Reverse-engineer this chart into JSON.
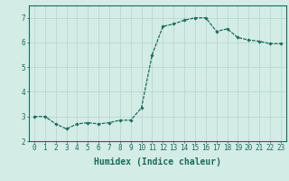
{
  "x": [
    0,
    1,
    2,
    3,
    4,
    5,
    6,
    7,
    8,
    9,
    10,
    11,
    12,
    13,
    14,
    15,
    16,
    17,
    18,
    19,
    20,
    21,
    22,
    23
  ],
  "y": [
    3.0,
    3.0,
    2.7,
    2.5,
    2.7,
    2.75,
    2.7,
    2.75,
    2.85,
    2.85,
    3.35,
    5.5,
    6.65,
    6.75,
    6.9,
    7.0,
    7.0,
    6.45,
    6.55,
    6.2,
    6.1,
    6.05,
    5.95,
    5.95
  ],
  "line_color": "#1a6b5a",
  "marker": "D",
  "marker_size": 1.8,
  "line_width": 0.9,
  "xlabel": "Humidex (Indice chaleur)",
  "xlim": [
    -0.5,
    23.5
  ],
  "ylim": [
    2.0,
    7.5
  ],
  "yticks": [
    2,
    3,
    4,
    5,
    6,
    7
  ],
  "xticks": [
    0,
    1,
    2,
    3,
    4,
    5,
    6,
    7,
    8,
    9,
    10,
    11,
    12,
    13,
    14,
    15,
    16,
    17,
    18,
    19,
    20,
    21,
    22,
    23
  ],
  "background_color": "#d4ece6",
  "grid_color": "#b8d8d0",
  "axis_color": "#1a6b5a",
  "tick_label_fontsize": 5.5,
  "xlabel_fontsize": 7.0
}
